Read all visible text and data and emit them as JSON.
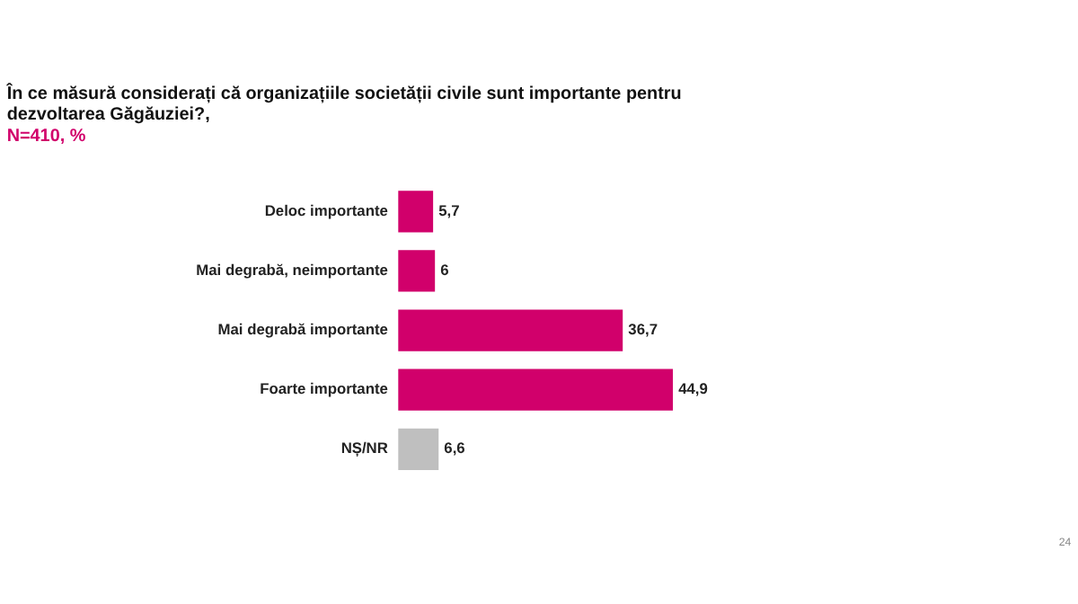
{
  "chart_data": {
    "type": "bar",
    "orientation": "horizontal",
    "title": [
      "În ce măsură considerați că organizațiile societății civile sunt importante pentru",
      "dezvoltarea Găgăuziei?,"
    ],
    "subtitle": "N=410, %",
    "categories": [
      "Deloc importante",
      "Mai degrabă, neimportante",
      "Mai degrabă importante",
      "Foarte importante",
      "NȘ/NR"
    ],
    "values": [
      5.7,
      6,
      36.7,
      44.9,
      6.6
    ],
    "colors": [
      "#d1006b",
      "#d1006b",
      "#d1006b",
      "#d1006b",
      "#bfbfbf"
    ],
    "value_labels": [
      "5,7",
      "6",
      "36,7",
      "44,9",
      "6,6"
    ],
    "annotations": [
      "24"
    ],
    "grid": false
  }
}
